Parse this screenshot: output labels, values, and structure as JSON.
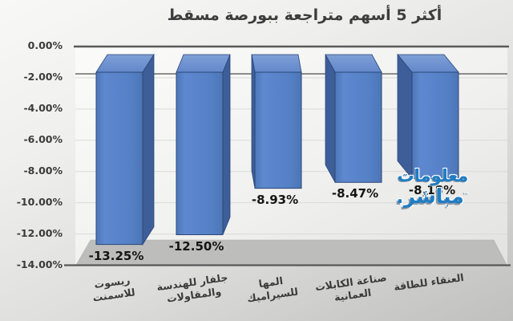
{
  "title": "أكثر 5 أسهم متراجعة ببورصة مسقط",
  "watermark": {
    "line1": "معلومات",
    "line2": "مباشر.",
    "tm": "™",
    "color": "#1f7dc4"
  },
  "chart_data": {
    "type": "bar",
    "style": "3d-columns-negative",
    "title": "أكثر 5 أسهم متراجعة ببورصة مسقط",
    "categories": [
      "ريسوت للاسمنت",
      "جلفار للهندسة والمقاولات",
      "المها للسيراميك",
      "صناعة الكابلات العمانية",
      "العنقاء للطاقة"
    ],
    "category_lines": [
      [
        "ريسوت",
        "للاسمنت"
      ],
      [
        "جلفار للهندسة",
        "والمقاولات"
      ],
      [
        "المها",
        "للسيراميك"
      ],
      [
        "صناعة الكابلات",
        "العمانية"
      ],
      [
        "العنقاء للطاقة"
      ]
    ],
    "values": [
      -13.25,
      -12.5,
      -8.93,
      -8.47,
      -8.18
    ],
    "value_labels": [
      "-13.25%",
      "-12.50%",
      "-8.93%",
      "-8.47%",
      "-8.18%"
    ],
    "y_ticks": [
      "0.00%",
      "-2.00%",
      "-4.00%",
      "-6.00%",
      "-8.00%",
      "-10.00%",
      "-12.00%",
      "-14.00%"
    ],
    "ylim": [
      -14,
      0
    ],
    "y_step": 2,
    "grid": true,
    "legend": false,
    "bar_front_color": "#5480c6",
    "bar_front_light": "#6189cf",
    "bar_side_color": "#3e5e99",
    "bar_top_color": "#7296d1",
    "bar_edge_color": "#2c4778",
    "axis_line_color": "#595959",
    "gridline_color": "#d9dad9",
    "floor_color": "#bdbdbc",
    "label_color": "#3b3b3b"
  }
}
